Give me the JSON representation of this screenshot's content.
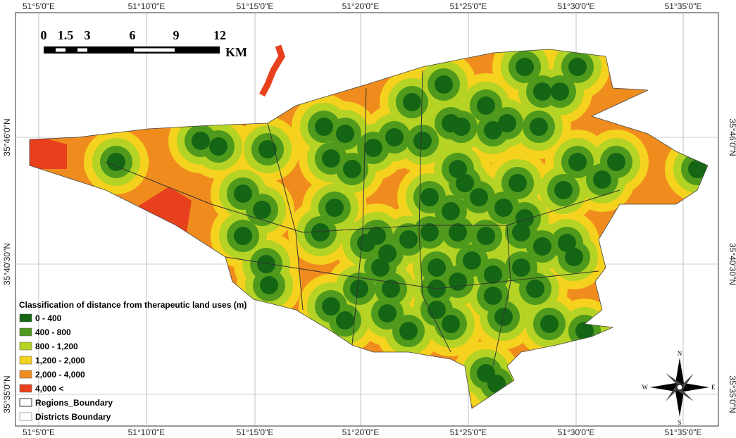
{
  "map": {
    "graticule": {
      "top": [
        "51°5'0\"E",
        "51°10'0\"E",
        "51°15'0\"E",
        "51°20'0\"E",
        "51°25'0\"E",
        "51°30'0\"E",
        "51°35'0\"E"
      ],
      "bottom": [
        "51°5'0\"E",
        "51°10'0\"E",
        "51°15'0\"E",
        "51°20'0\"E",
        "51°25'0\"E",
        "51°30'0\"E",
        "51°35'0\"E"
      ],
      "left": [
        "35°46'0\"N",
        "35°40'30\"N",
        "35°35'0\"N"
      ],
      "right": [
        "35°46'0\"N",
        "35°40'30\"N",
        "35°35'0\"N"
      ]
    },
    "scale_bar": {
      "labels": [
        "0",
        "1.5",
        "3",
        "6",
        "9",
        "12"
      ],
      "unit": "KM"
    },
    "legend": {
      "title": "Classification of distance from therapeutic land uses (m)",
      "classes": [
        {
          "label": "0 - 400",
          "color": "#146614"
        },
        {
          "label": "400 - 800",
          "color": "#4f9a1c"
        },
        {
          "label": "800 - 1,200",
          "color": "#b4d324"
        },
        {
          "label": "1,200 - 2,000",
          "color": "#f4d21e"
        },
        {
          "label": "2,000 - 4,000",
          "color": "#f08c1e"
        },
        {
          "label": "4,000 <",
          "color": "#e8401c"
        }
      ],
      "boundaries": [
        "Regions_Boundary",
        "Districts Boundary"
      ]
    },
    "compass": {
      "n": "N",
      "s": "S",
      "e": "E",
      "w": "W"
    }
  }
}
